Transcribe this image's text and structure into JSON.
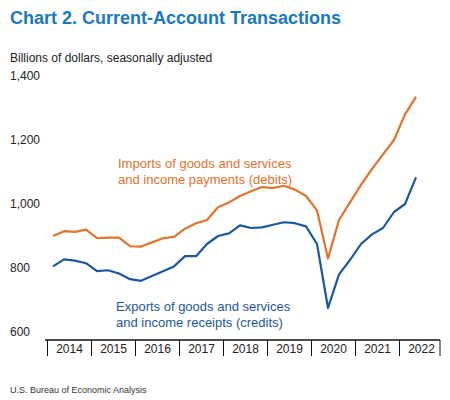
{
  "chart_data": {
    "type": "line",
    "title": "Chart 2. Current-Account Transactions",
    "subtitle": "Billions of dollars, seasonally adjusted",
    "source": "U.S. Bureau of Economic Analysis",
    "categories": [
      "2014",
      null,
      null,
      null,
      "2015",
      null,
      null,
      null,
      "2016",
      null,
      null,
      null,
      "2017",
      null,
      null,
      null,
      "2018",
      null,
      null,
      null,
      "2019",
      null,
      null,
      null,
      "2020",
      null,
      null,
      null,
      "2021",
      null,
      null,
      null,
      "2022",
      null
    ],
    "series": [
      {
        "name": "Imports of goods and services and income payments (debits)",
        "color": "#e2722c",
        "values": [
          925,
          940,
          938,
          945,
          918,
          920,
          920,
          893,
          892,
          905,
          918,
          922,
          948,
          965,
          975,
          1015,
          1030,
          1050,
          1065,
          1078,
          1075,
          1082,
          1070,
          1050,
          1005,
          855,
          975,
          1030,
          1085,
          1135,
          1180,
          1225,
          1305,
          1360
        ]
      },
      {
        "name": "Exports of goods and services and income receipts (credits)",
        "color": "#1b58a0",
        "values": [
          830,
          852,
          848,
          840,
          815,
          818,
          808,
          790,
          785,
          800,
          815,
          830,
          862,
          862,
          900,
          925,
          933,
          958,
          950,
          952,
          960,
          968,
          965,
          955,
          900,
          700,
          805,
          850,
          900,
          930,
          950,
          1000,
          1025,
          1108
        ]
      }
    ],
    "ylim": [
      600,
      1400
    ],
    "yticks": [
      600,
      800,
      {
        "value": 1000,
        "label": "1,000"
      },
      {
        "value": 1200,
        "label": "1,200"
      },
      {
        "value": 1400,
        "label": "1,400"
      }
    ],
    "grid": false
  }
}
